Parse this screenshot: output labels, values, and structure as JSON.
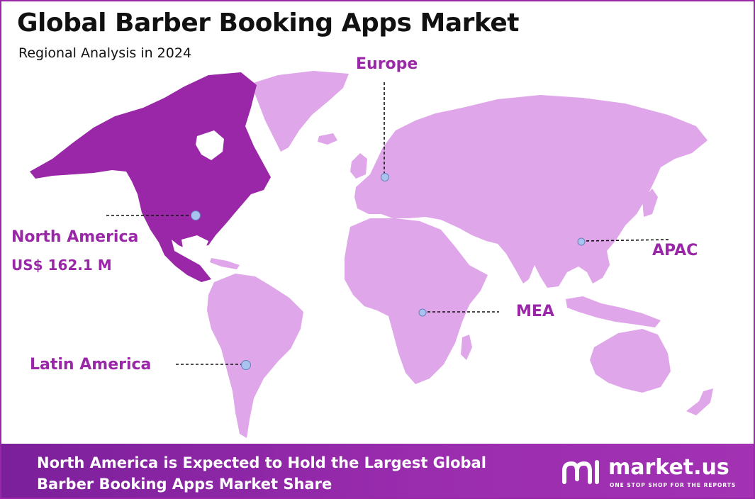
{
  "header": {
    "title": "Global Barber Booking Apps Market",
    "subtitle": "Regional Analysis in 2024"
  },
  "map": {
    "highlight_color": "#9a26a8",
    "land_color": "#dfa6ea",
    "regions": {
      "north_america": {
        "name": "North America",
        "value": "US$ 162.1 M",
        "highlighted": true
      },
      "europe": {
        "name": "Europe"
      },
      "apac": {
        "name": "APAC"
      },
      "mea": {
        "name": "MEA"
      },
      "latin_america": {
        "name": "Latin America"
      }
    }
  },
  "footer": {
    "line1": "North America is Expected to Hold the Largest Global",
    "line2": "Barber Booking Apps Market  Share",
    "background_color": "#8a24a6"
  },
  "brand": {
    "name": "market.us",
    "tagline": "ONE STOP SHOP FOR THE REPORTS",
    "logo_icon": "market-us-logo-icon"
  }
}
